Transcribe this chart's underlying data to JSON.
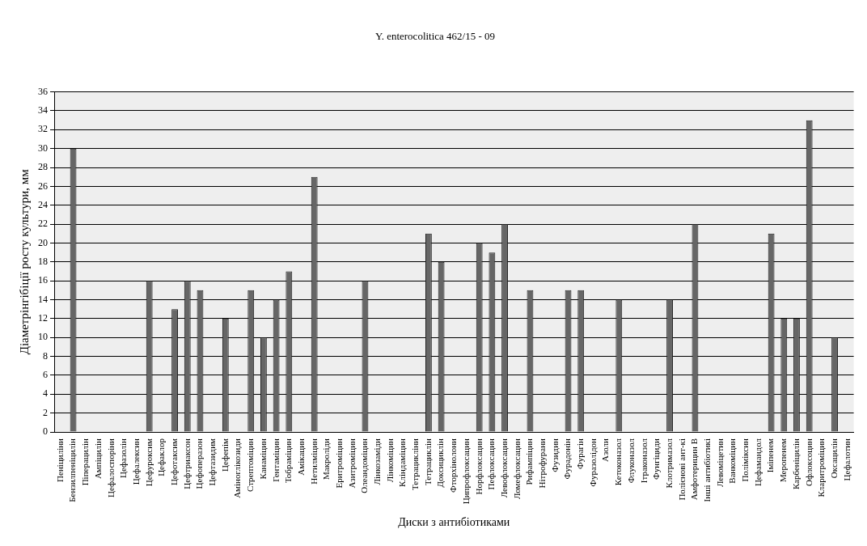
{
  "chart_data": {
    "type": "bar",
    "title": "Y. enterocolitica 462/15 - 09",
    "xlabel": "Диски з антибіотиками",
    "ylabel": "Діаметрінгібіції росту культури, мм",
    "categories": [
      "Пеніциліни",
      "Бензилпеніцилін",
      "Піперацилін",
      "Ампіцилін",
      "Цефалоспоріни",
      "Цефазолін",
      "Цефалексин",
      "Цефуроксим",
      "Цефаклор",
      "Цефотаксим",
      "Цефтриаксон",
      "Цефоперазон",
      "Цефтазидим",
      "Цефепім",
      "Аміноглікозиди",
      "Стрептоміцин",
      "Канаміцин",
      "Гентаміцин",
      "Тобраміцин",
      "Амікацин",
      "Нетилміцин",
      "Макроліди",
      "Еритроміцин",
      "Азитроміцин",
      "Олеандоміцин",
      "Лінкозаміди",
      "Лінкоміцин",
      "Кліндаміцин",
      "Тетрацикліни",
      "Тетрациклін",
      "Доксициклін",
      "Фторхінолони",
      "Ципрофлоксацин",
      "Норфлоксацин",
      "Пефлоксацин",
      "Левофлоксацин",
      "Ломефлоксацин",
      "Рифампіцин",
      "Нітрофурани",
      "Фузидин",
      "Фурадонін",
      "Фурагін",
      "Фуразолідон",
      "Азоли",
      "Кетоконазол",
      "Флуконазол",
      "Ітраконазол",
      "Фунгіциди",
      "Клотримазол",
      "Полієнові ант-кі",
      "Амфотерицин В",
      "Інші антибіотикі",
      "Левоміцетин",
      "Ванкоміцин",
      "Поліміксин",
      "Цефамандол",
      "Іміпенем",
      "Меропенем",
      "Карбеніцилін",
      "Офлоксоцин",
      "Кларитроміцин",
      "Оксацилін",
      "Цефалотин"
    ],
    "values": [
      0,
      30,
      0,
      0,
      0,
      0,
      0,
      16,
      0,
      13,
      16,
      15,
      0,
      12,
      0,
      15,
      10,
      14,
      17,
      0,
      27,
      0,
      0,
      0,
      16,
      0,
      0,
      0,
      0,
      21,
      18,
      0,
      0,
      20,
      19,
      22,
      0,
      15,
      0,
      0,
      15,
      15,
      0,
      0,
      14,
      0,
      0,
      0,
      14,
      0,
      22,
      0,
      0,
      0,
      0,
      0,
      21,
      12,
      12,
      33,
      0,
      10,
      0
    ],
    "color": "#666666",
    "ylim": [
      0,
      36
    ],
    "yticks": [
      0,
      2,
      4,
      6,
      8,
      10,
      12,
      14,
      16,
      18,
      20,
      22,
      24,
      26,
      28,
      30,
      32,
      34,
      36
    ],
    "grid": "y"
  }
}
